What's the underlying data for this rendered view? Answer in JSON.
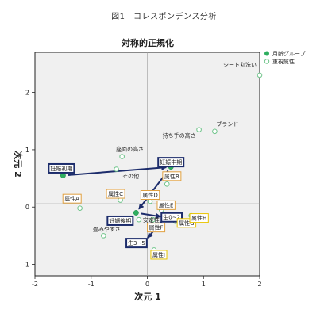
{
  "figure_caption": "図1　コレスポンデンス分析",
  "chart_data": {
    "type": "scatter",
    "title": "対称的正規化",
    "xlabel": "次元 1",
    "ylabel": "次元 2",
    "xlim": [
      -2,
      2
    ],
    "ylim": [
      -1.2,
      2.7
    ],
    "xticks": [
      -2,
      -1,
      0,
      1,
      2
    ],
    "yticks": [
      -1,
      0,
      1,
      2
    ],
    "grid": false,
    "legend_position": "top-right",
    "series": [
      {
        "name": "月齢グループ",
        "color": "#2eae5f",
        "marker": "filled-circle",
        "points": [
          {
            "label": "妊娠初期",
            "x": -1.5,
            "y": 0.55
          },
          {
            "label": "妊娠中期",
            "x": 0.42,
            "y": 0.7
          },
          {
            "label": "妊娠後期",
            "x": -0.2,
            "y": -0.1
          },
          {
            "label": "生0~2",
            "x": 0.32,
            "y": -0.18
          },
          {
            "label": "生3~5",
            "x": -0.05,
            "y": -0.6
          }
        ]
      },
      {
        "name": "重視属性",
        "color": "#6fc48a",
        "marker": "hollow-circle",
        "points": [
          {
            "label": "シート丸洗い",
            "x": 2.0,
            "y": 2.3
          },
          {
            "label": "ブランド",
            "x": 1.2,
            "y": 1.32
          },
          {
            "label": "持ち手の高さ",
            "x": 0.92,
            "y": 1.35
          },
          {
            "label": "座面の高さ",
            "x": -0.45,
            "y": 0.88
          },
          {
            "label": "その他",
            "x": -0.55,
            "y": 0.66
          },
          {
            "label": "属性A",
            "x": -1.2,
            "y": -0.02
          },
          {
            "label": "属性B",
            "x": 0.35,
            "y": 0.4
          },
          {
            "label": "属性C",
            "x": -0.48,
            "y": 0.12
          },
          {
            "label": "属性D",
            "x": 0.05,
            "y": 0.1
          },
          {
            "label": "属性E",
            "x": 0.25,
            "y": -0.05
          },
          {
            "label": "属性F",
            "x": 0.1,
            "y": -0.22
          },
          {
            "label": "属性G",
            "x": 0.5,
            "y": -0.25
          },
          {
            "label": "属性H",
            "x": 0.78,
            "y": -0.15
          },
          {
            "label": "属性I",
            "x": 0.12,
            "y": -0.75
          },
          {
            "label": "安定性",
            "x": -0.15,
            "y": -0.22
          },
          {
            "label": "畳みやすさ",
            "x": -0.78,
            "y": -0.5
          }
        ]
      }
    ],
    "arrows": [
      {
        "from": "妊娠初期",
        "to": "妊娠中期",
        "color": "#1c2c6b"
      },
      {
        "from": "妊娠中期",
        "to": "妊娠後期",
        "color": "#1c2c6b"
      },
      {
        "from": "妊娠後期",
        "to": "生0~2",
        "color": "#1c2c6b"
      },
      {
        "from": "生0~2",
        "to": "生3~5",
        "color": "#1c2c6b"
      }
    ]
  }
}
